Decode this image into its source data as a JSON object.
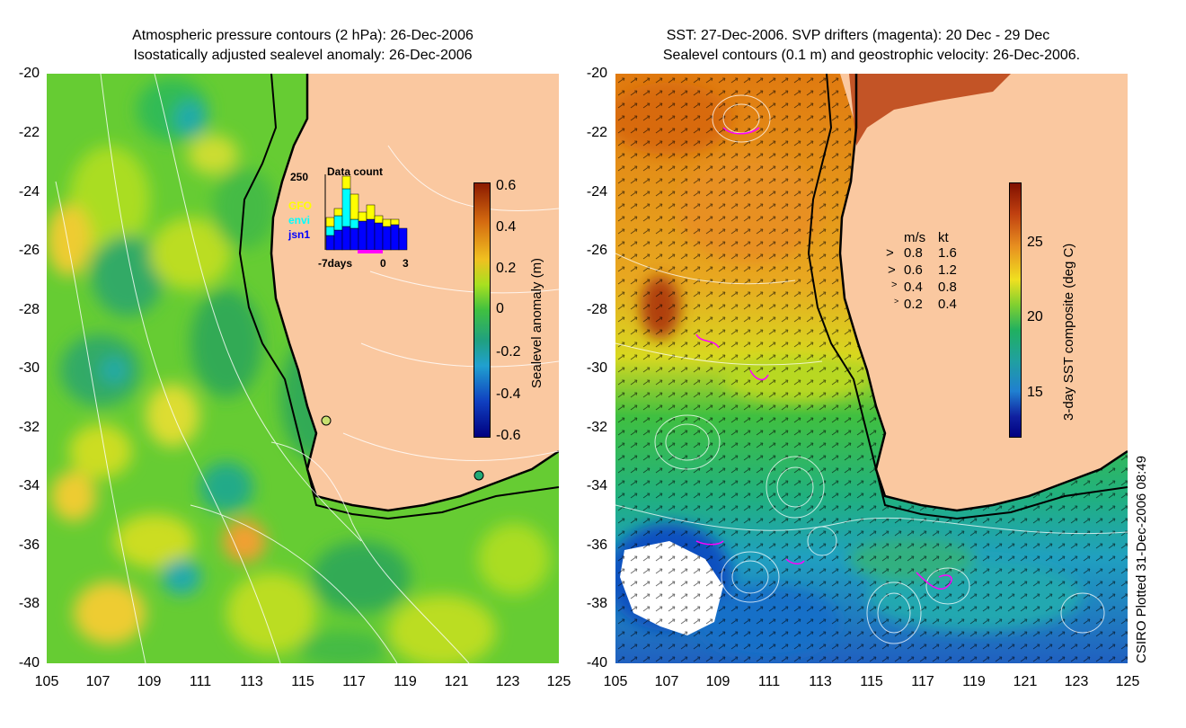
{
  "left_panel": {
    "title_line1": "Atmospheric pressure contours (2 hPa): 26-Dec-2006",
    "title_line2": "Isostatically adjusted sealevel anomaly: 26-Dec-2006",
    "y_ticks": [
      "-20",
      "-22",
      "-24",
      "-26",
      "-28",
      "-30",
      "-32",
      "-34",
      "-36",
      "-38",
      "-40"
    ],
    "x_ticks": [
      "105",
      "107",
      "109",
      "111",
      "113",
      "115",
      "117",
      "119",
      "121",
      "123",
      "125"
    ],
    "colorbar": {
      "label": "Sealevel anomaly (m)",
      "ticks": [
        "0.6",
        "0.4",
        "0.2",
        "0",
        "-0.2",
        "-0.4",
        "-0.6"
      ]
    },
    "inset": {
      "title": "Data count",
      "ymax": "250",
      "sources": [
        "GFO",
        "envi",
        "jsn1"
      ],
      "source_colors": [
        "#ffff00",
        "#00ffff",
        "#0000ff"
      ],
      "x_labels": [
        "-7days",
        "0",
        "3"
      ]
    }
  },
  "right_panel": {
    "title_line1": "SST: 27-Dec-2006. SVP drifters (magenta): 20 Dec - 29 Dec",
    "title_line2": "Sealevel contours (0.1 m) and geostrophic velocity: 26-Dec-2006.",
    "y_ticks": [
      "-20",
      "-22",
      "-24",
      "-26",
      "-28",
      "-30",
      "-32",
      "-34",
      "-36",
      "-38",
      "-40"
    ],
    "x_ticks": [
      "105",
      "107",
      "109",
      "111",
      "113",
      "115",
      "117",
      "119",
      "121",
      "123",
      "125"
    ],
    "colorbar": {
      "label": "3-day SST composite (deg C)",
      "ticks": [
        "25",
        "20",
        "15"
      ]
    },
    "velocity_legend": {
      "header_ms": "m/s",
      "header_kt": "kt",
      "rows": [
        {
          "ms": "0.8",
          "kt": "1.6"
        },
        {
          "ms": "0.6",
          "kt": "1.2"
        },
        {
          "ms": "0.4",
          "kt": "0.8"
        },
        {
          "ms": "0.2",
          "kt": "0.4"
        }
      ]
    }
  },
  "footer": {
    "plotted": "CSIRO Plotted 31-Dec-2006 08:49"
  },
  "colors": {
    "land": "#fac8a0",
    "drifter": "#ff00ff"
  }
}
